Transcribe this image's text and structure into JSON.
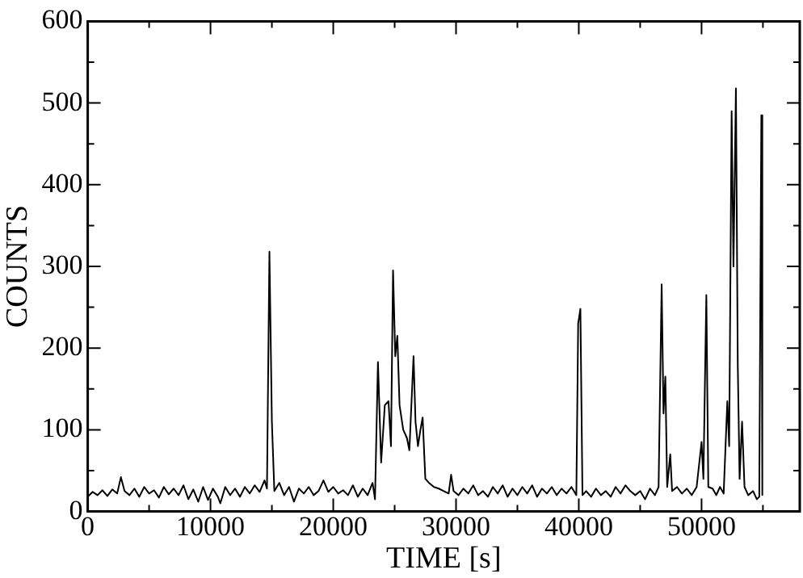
{
  "chart_data": {
    "type": "line",
    "xlabel": "TIME [s]",
    "ylabel": "COUNTS",
    "xlim": [
      0,
      58000
    ],
    "xticks": [
      0,
      {
        "value": 5000,
        "label": null
      },
      10000,
      {
        "value": 15000,
        "label": null
      },
      20000,
      {
        "value": 25000,
        "label": null
      },
      30000,
      {
        "value": 35000,
        "label": null
      },
      40000,
      {
        "value": 45000,
        "label": null
      },
      50000,
      {
        "value": 55000,
        "label": null
      }
    ],
    "ylim": [
      0,
      600
    ],
    "yticks": [
      0,
      {
        "value": 50,
        "label": null
      },
      100,
      {
        "value": 150,
        "label": null
      },
      200,
      {
        "value": 250,
        "label": null
      },
      300,
      {
        "value": 350,
        "label": null
      },
      400,
      {
        "value": 450,
        "label": null
      },
      500,
      {
        "value": 550,
        "label": null
      },
      600
    ],
    "grid": false,
    "legend": false,
    "marker": "none",
    "line_style": "solid",
    "series": [
      {
        "color": "#000000",
        "x": [
          0,
          400,
          800,
          1200,
          1600,
          2000,
          2400,
          2700,
          3000,
          3400,
          3800,
          4200,
          4600,
          5000,
          5400,
          5800,
          6200,
          6600,
          7000,
          7400,
          7800,
          8200,
          8600,
          9000,
          9400,
          9800,
          10200,
          10600,
          10800,
          11200,
          11600,
          12000,
          12400,
          12800,
          13200,
          13600,
          14000,
          14400,
          14600,
          14800,
          15000,
          15200,
          15600,
          16000,
          16400,
          16800,
          17200,
          17600,
          18000,
          18400,
          18800,
          19200,
          19600,
          20000,
          20400,
          20800,
          21200,
          21600,
          22000,
          22400,
          22800,
          23200,
          23400,
          23640,
          23900,
          24200,
          24500,
          24700,
          24870,
          25050,
          25220,
          25400,
          25700,
          26000,
          26200,
          26540,
          26700,
          26900,
          27100,
          27280,
          27500,
          27800,
          28200,
          28600,
          29000,
          29400,
          29600,
          29800,
          30200,
          30600,
          31000,
          31400,
          31800,
          32200,
          32600,
          33000,
          33400,
          33800,
          34200,
          34600,
          35000,
          35400,
          35800,
          36200,
          36600,
          37000,
          37400,
          37800,
          38200,
          38600,
          39000,
          39400,
          39800,
          39950,
          40130,
          40300,
          40600,
          41000,
          41400,
          41800,
          42200,
          42600,
          43000,
          43400,
          43800,
          44200,
          44600,
          45000,
          45400,
          45800,
          46200,
          46500,
          46750,
          46900,
          47050,
          47200,
          47450,
          47600,
          48000,
          48400,
          48800,
          49200,
          49600,
          50000,
          50150,
          50390,
          50550,
          50900,
          51200,
          51500,
          51800,
          52100,
          52250,
          52450,
          52600,
          52800,
          52950,
          53100,
          53300,
          53500,
          53800,
          54200,
          54500,
          54700,
          54870,
          54950
        ],
        "values": [
          18,
          24,
          20,
          26,
          19,
          27,
          22,
          42,
          25,
          20,
          28,
          18,
          30,
          22,
          26,
          17,
          30,
          21,
          28,
          20,
          32,
          15,
          27,
          12,
          30,
          14,
          28,
          18,
          10,
          30,
          20,
          28,
          18,
          30,
          22,
          32,
          24,
          38,
          28,
          318,
          110,
          25,
          35,
          20,
          30,
          12,
          28,
          22,
          30,
          20,
          25,
          38,
          24,
          30,
          22,
          26,
          20,
          32,
          18,
          28,
          20,
          35,
          15,
          183,
          60,
          130,
          135,
          80,
          295,
          190,
          215,
          130,
          100,
          90,
          75,
          190,
          110,
          80,
          100,
          115,
          40,
          35,
          30,
          28,
          25,
          22,
          45,
          25,
          20,
          28,
          22,
          32,
          20,
          25,
          18,
          30,
          22,
          32,
          18,
          28,
          20,
          30,
          22,
          32,
          18,
          28,
          22,
          30,
          20,
          28,
          22,
          30,
          20,
          230,
          248,
          20,
          25,
          18,
          28,
          20,
          25,
          18,
          30,
          22,
          32,
          25,
          20,
          25,
          15,
          28,
          20,
          30,
          278,
          120,
          165,
          30,
          70,
          25,
          30,
          22,
          28,
          20,
          30,
          85,
          40,
          265,
          30,
          28,
          20,
          30,
          22,
          135,
          80,
          490,
          300,
          518,
          180,
          40,
          110,
          30,
          20,
          25,
          15,
          18,
          485,
          20
        ]
      }
    ]
  }
}
